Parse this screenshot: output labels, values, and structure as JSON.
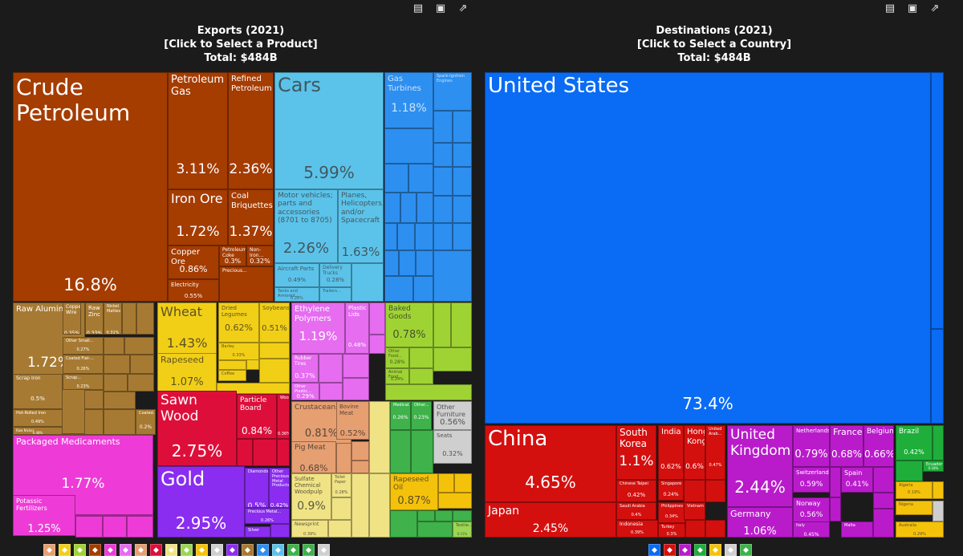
{
  "exports": {
    "title": "Exports (2021)",
    "subtitle": "[Click to Select a Product]",
    "total": "Total: $484B",
    "toolbar_icons": [
      "table-icon",
      "image-icon",
      "share-icon"
    ]
  },
  "destinations": {
    "title": "Destinations (2021)",
    "subtitle": "[Click to Select a Country]",
    "total": "Total: $484B",
    "toolbar_icons": [
      "table-icon",
      "image-icon",
      "share-icon"
    ]
  },
  "colors": {
    "mineral": "#a53c00",
    "transport": "#5bc3ea",
    "machines": "#2d8ff0",
    "metals": "#a77a33",
    "vegetable": "#f2cf17",
    "chemicals": "#ee3bd7",
    "wood": "#dd0f3a",
    "precious": "#8a2df0",
    "plastics": "#e66cf0",
    "foodstuffs": "#9fd334",
    "animal": "#e69f71",
    "paper": "#f0e385",
    "stone": "#cfcfcf",
    "misc": "#3fb24b",
    "textiles": "#9cd653",
    "america": "#0a6cf5",
    "asia": "#d4100f",
    "europe": "#b91bcb",
    "south_america": "#1fae3a",
    "oceania": "#f5c20b"
  },
  "chart_data": [
    {
      "type": "treemap",
      "title": "Exports (2021)",
      "subtitle": "[Click to Select a Product]",
      "total": "Total: $484B",
      "tiles": [
        {
          "label": "Crude Petroleum",
          "value": "16.8%",
          "category": "mineral"
        },
        {
          "label": "Petroleum Gas",
          "value": "3.11%",
          "category": "mineral"
        },
        {
          "label": "Refined Petroleum",
          "value": "2.36%",
          "category": "mineral"
        },
        {
          "label": "Iron Ore",
          "value": "1.72%",
          "category": "mineral"
        },
        {
          "label": "Coal Briquettes",
          "value": "1.37%",
          "category": "mineral"
        },
        {
          "label": "Copper Ore",
          "value": "0.86%",
          "category": "mineral"
        },
        {
          "label": "Petroleum Coke",
          "value": "0.3%",
          "category": "mineral"
        },
        {
          "label": "Non-Iron...",
          "value": "0.32%",
          "category": "mineral"
        },
        {
          "label": "Electricity",
          "value": "0.55%",
          "category": "mineral"
        },
        {
          "label": "Precious...",
          "value": "",
          "category": "mineral"
        },
        {
          "label": "Cars",
          "value": "5.99%",
          "category": "transport"
        },
        {
          "label": "Motor vehicles; parts and accessories (8701 to 8705)",
          "value": "2.26%",
          "category": "transport"
        },
        {
          "label": "Planes, Helicopters, and/or Spacecraft",
          "value": "1.63%",
          "category": "transport"
        },
        {
          "label": "Aircraft Parts",
          "value": "0.49%",
          "category": "transport"
        },
        {
          "label": "Delivery Trucks",
          "value": "0.28%",
          "category": "transport"
        },
        {
          "label": "Tanks and Armored...",
          "value": "0.26%",
          "category": "transport"
        },
        {
          "label": "Trailers...",
          "value": "",
          "category": "transport"
        },
        {
          "label": "Gas Turbines",
          "value": "1.18%",
          "category": "machines"
        },
        {
          "label": "Spark-Ignition Engines",
          "value": "0.43%",
          "category": "machines"
        },
        {
          "label": "Raw Aluminium",
          "value": "1.72%",
          "category": "metals"
        },
        {
          "label": "Copper Wire",
          "value": "0.35%",
          "category": "metals"
        },
        {
          "label": "Raw Zinc",
          "value": "0.33%",
          "category": "metals"
        },
        {
          "label": "Nickel Mattes",
          "value": "0.31%",
          "category": "metals"
        },
        {
          "label": "Other Small...",
          "value": "0.27%",
          "category": "metals"
        },
        {
          "label": "Coated Flat-...",
          "value": "0.26%",
          "category": "metals"
        },
        {
          "label": "Scrap Iron",
          "value": "0.5%",
          "category": "metals"
        },
        {
          "label": "Scrap...",
          "value": "0.23%",
          "category": "metals"
        },
        {
          "label": "Hot-Rolled Iron",
          "value": "0.49%",
          "category": "metals"
        },
        {
          "label": "Raw Nickel",
          "value": "0.48%",
          "category": "metals"
        },
        {
          "label": "Coated...",
          "value": "0.2%",
          "category": "metals"
        },
        {
          "label": "Wheat",
          "value": "1.43%",
          "category": "vegetable"
        },
        {
          "label": "Dried Legumes",
          "value": "0.62%",
          "category": "vegetable"
        },
        {
          "label": "Soybeans",
          "value": "0.51%",
          "category": "vegetable"
        },
        {
          "label": "Rapeseed",
          "value": "1.07%",
          "category": "vegetable"
        },
        {
          "label": "Barley",
          "value": "0.33%",
          "category": "vegetable"
        },
        {
          "label": "Coffee",
          "value": "",
          "category": "vegetable"
        },
        {
          "label": "Ethylene Polymers",
          "value": "1.19%",
          "category": "plastics"
        },
        {
          "label": "Plastic Lids",
          "value": "0.48%",
          "category": "plastics"
        },
        {
          "label": "Rubber Tires",
          "value": "0.37%",
          "category": "plastics"
        },
        {
          "label": "Other Plastic...",
          "value": "0.29%",
          "category": "plastics"
        },
        {
          "label": "Baked Goods",
          "value": "0.78%",
          "category": "foodstuffs"
        },
        {
          "label": "Other Food...",
          "value": "0.28%",
          "category": "foodstuffs"
        },
        {
          "label": "Animal Food",
          "value": "0.24%",
          "category": "foodstuffs"
        },
        {
          "label": "Sawn Wood",
          "value": "2.75%",
          "category": "wood"
        },
        {
          "label": "Particle Board",
          "value": "0.84%",
          "category": "wood"
        },
        {
          "label": "Wood...",
          "value": "0.36%",
          "category": "wood"
        },
        {
          "label": "Packaged Medicaments",
          "value": "1.77%",
          "category": "chemicals"
        },
        {
          "label": "Potassic Fertilizers",
          "value": "1.25%",
          "category": "chemicals"
        },
        {
          "label": "Gold",
          "value": "2.95%",
          "category": "precious"
        },
        {
          "label": "Diamonds",
          "value": "0.5%",
          "category": "precious"
        },
        {
          "label": "Other Precious Metal Products",
          "value": "0.42%",
          "category": "precious"
        },
        {
          "label": "Precious Metal...",
          "value": "0.26%",
          "category": "precious"
        },
        {
          "label": "Silver",
          "value": "",
          "category": "precious"
        },
        {
          "label": "Crustaceans",
          "value": "0.81%",
          "category": "animal"
        },
        {
          "label": "Bovine Meat",
          "value": "0.52%",
          "category": "animal"
        },
        {
          "label": "Pig Meat",
          "value": "0.68%",
          "category": "animal"
        },
        {
          "label": "Sulfate Chemical Woodpulp",
          "value": "0.9%",
          "category": "paper"
        },
        {
          "label": "Toilet Paper",
          "value": "0.28%",
          "category": "paper"
        },
        {
          "label": "Newsprint",
          "value": "0.39%",
          "category": "paper"
        },
        {
          "label": "Medical...",
          "value": "0.26%",
          "category": "misc"
        },
        {
          "label": "Other...",
          "value": "0.23%",
          "category": "misc"
        },
        {
          "label": "Other Furniture",
          "value": "0.56%",
          "category": "stone"
        },
        {
          "label": "Seats",
          "value": "0.32%",
          "category": "stone"
        },
        {
          "label": "Rapeseed Oil",
          "value": "0.87%",
          "category": "oceania"
        },
        {
          "label": "Textile...",
          "value": "0.15%",
          "category": "textiles"
        }
      ]
    },
    {
      "type": "treemap",
      "title": "Destinations (2021)",
      "subtitle": "[Click to Select a Country]",
      "total": "Total: $484B",
      "tiles": [
        {
          "label": "United States",
          "value": "73.4%",
          "category": "america"
        },
        {
          "label": "China",
          "value": "4.65%",
          "category": "asia"
        },
        {
          "label": "Japan",
          "value": "2.45%",
          "category": "asia"
        },
        {
          "label": "South Korea",
          "value": "1.1%",
          "category": "asia"
        },
        {
          "label": "India",
          "value": "0.62%",
          "category": "asia"
        },
        {
          "label": "Hong Kong",
          "value": "0.6%",
          "category": "asia"
        },
        {
          "label": "United Arab...",
          "value": "0.47%",
          "category": "asia"
        },
        {
          "label": "Chinese Taipei",
          "value": "0.42%",
          "category": "asia"
        },
        {
          "label": "Singapore",
          "value": "0.24%",
          "category": "asia"
        },
        {
          "label": "Saudi Arabia",
          "value": "0.4%",
          "category": "asia"
        },
        {
          "label": "Philippines",
          "value": "0.34%",
          "category": "asia"
        },
        {
          "label": "Vietnam",
          "value": "",
          "category": "asia"
        },
        {
          "label": "Indonesia",
          "value": "0.39%",
          "category": "asia"
        },
        {
          "label": "Turkey",
          "value": "0.3%",
          "category": "asia"
        },
        {
          "label": "United Kingdom",
          "value": "2.44%",
          "category": "europe"
        },
        {
          "label": "Netherlands",
          "value": "0.79%",
          "category": "europe"
        },
        {
          "label": "France",
          "value": "0.68%",
          "category": "europe"
        },
        {
          "label": "Belgium",
          "value": "0.66%",
          "category": "europe"
        },
        {
          "label": "Switzerland",
          "value": "0.59%",
          "category": "europe"
        },
        {
          "label": "Spain",
          "value": "0.41%",
          "category": "europe"
        },
        {
          "label": "Germany",
          "value": "1.06%",
          "category": "europe"
        },
        {
          "label": "Norway",
          "value": "0.56%",
          "category": "europe"
        },
        {
          "label": "Italy",
          "value": "0.45%",
          "category": "europe"
        },
        {
          "label": "Malta",
          "value": "",
          "category": "europe"
        },
        {
          "label": "Brazil",
          "value": "0.42%",
          "category": "south_america"
        },
        {
          "label": "Ecuador",
          "value": "0.18%",
          "category": "south_america"
        },
        {
          "label": "Algeria",
          "value": "0.19%",
          "category": "oceania"
        },
        {
          "label": "Nigeria",
          "value": "",
          "category": "oceania"
        },
        {
          "label": "Australia",
          "value": "0.29%",
          "category": "oceania"
        }
      ]
    }
  ],
  "export_legend": [
    "animal",
    "vegetable",
    "foodstuffs",
    "mineral",
    "chemicals",
    "plastics",
    "animal",
    "wood",
    "paper",
    "textiles",
    "oceania",
    "stone",
    "precious",
    "metals",
    "machines",
    "transport",
    "misc",
    "misc",
    "stone"
  ],
  "dest_legend": [
    "america",
    "asia",
    "europe",
    "south_america",
    "oceania",
    "stone",
    "misc"
  ]
}
